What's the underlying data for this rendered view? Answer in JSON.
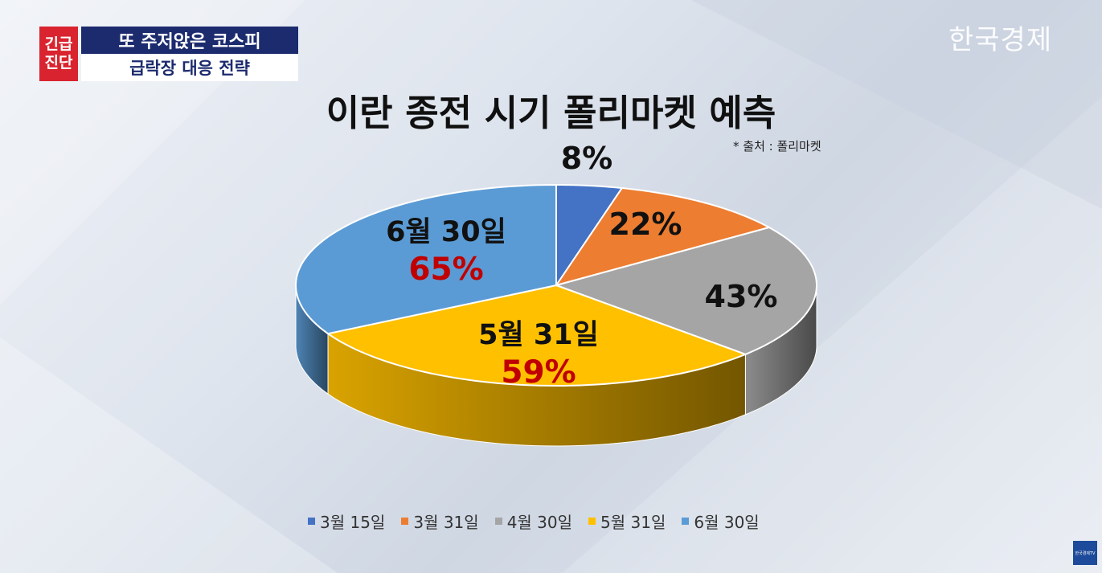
{
  "badge": {
    "line1": "긴급",
    "line2": "진단"
  },
  "headline": {
    "line1": "또 주저앉은 코스피",
    "line2": "급락장 대응 전략"
  },
  "logo": "한국경제",
  "chart_data": {
    "type": "pie",
    "title": "이란 종전 시기 폴리마켓 예측",
    "source": "* 출처 : 폴리마켓",
    "categories": [
      "3월 15일",
      "3월 31일",
      "4월 30일",
      "5월 31일",
      "6월 30일"
    ],
    "values": [
      8,
      22,
      43,
      59,
      65
    ],
    "labels": [
      "8%",
      "22%",
      "43%",
      "59%",
      "65%"
    ],
    "slice_titles": [
      "",
      "",
      "",
      "5월 31일",
      "6월 30일"
    ],
    "colors": [
      "#4472c4",
      "#ed7d31",
      "#a5a5a5",
      "#ffc000",
      "#5b9bd5"
    ],
    "highlight_color": "#c00000",
    "legend_position": "bottom"
  },
  "tv_logo": "한국경제TV"
}
